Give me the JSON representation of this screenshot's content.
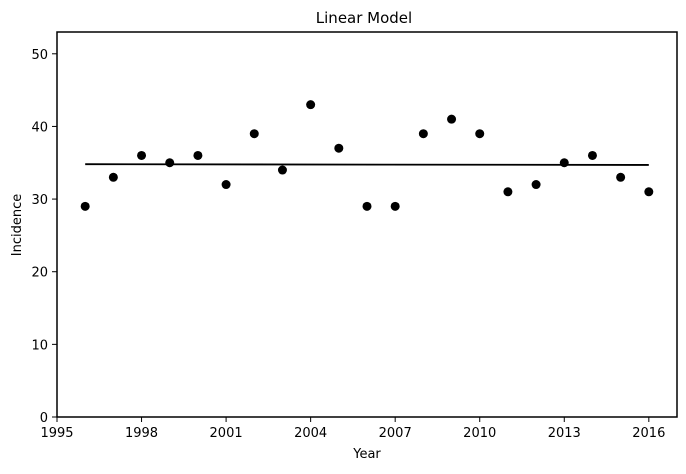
{
  "chart_data": {
    "type": "scatter",
    "title": "Linear Model",
    "xlabel": "Year",
    "ylabel": "Incidence",
    "xlim": [
      1995,
      2017
    ],
    "ylim": [
      0,
      53
    ],
    "xticks": [
      1995,
      1998,
      2001,
      2004,
      2007,
      2010,
      2013,
      2016
    ],
    "yticks": [
      0,
      10,
      20,
      30,
      40,
      50
    ],
    "grid": false,
    "series": [
      {
        "kind": "scatter",
        "color": "#000000",
        "points": [
          {
            "x": 1996,
            "y": 29
          },
          {
            "x": 1997,
            "y": 33
          },
          {
            "x": 1998,
            "y": 36
          },
          {
            "x": 1999,
            "y": 35
          },
          {
            "x": 2000,
            "y": 36
          },
          {
            "x": 2001,
            "y": 32
          },
          {
            "x": 2002,
            "y": 39
          },
          {
            "x": 2003,
            "y": 34
          },
          {
            "x": 2004,
            "y": 43
          },
          {
            "x": 2005,
            "y": 37
          },
          {
            "x": 2006,
            "y": 29
          },
          {
            "x": 2007,
            "y": 29
          },
          {
            "x": 2008,
            "y": 39
          },
          {
            "x": 2009,
            "y": 41
          },
          {
            "x": 2010,
            "y": 39
          },
          {
            "x": 2011,
            "y": 31
          },
          {
            "x": 2012,
            "y": 32
          },
          {
            "x": 2013,
            "y": 35
          },
          {
            "x": 2014,
            "y": 36
          },
          {
            "x": 2015,
            "y": 33
          },
          {
            "x": 2016,
            "y": 31
          }
        ]
      },
      {
        "kind": "line",
        "color": "#000000",
        "points": [
          {
            "x": 1996,
            "y": 34.8
          },
          {
            "x": 2016,
            "y": 34.7
          }
        ]
      }
    ]
  }
}
